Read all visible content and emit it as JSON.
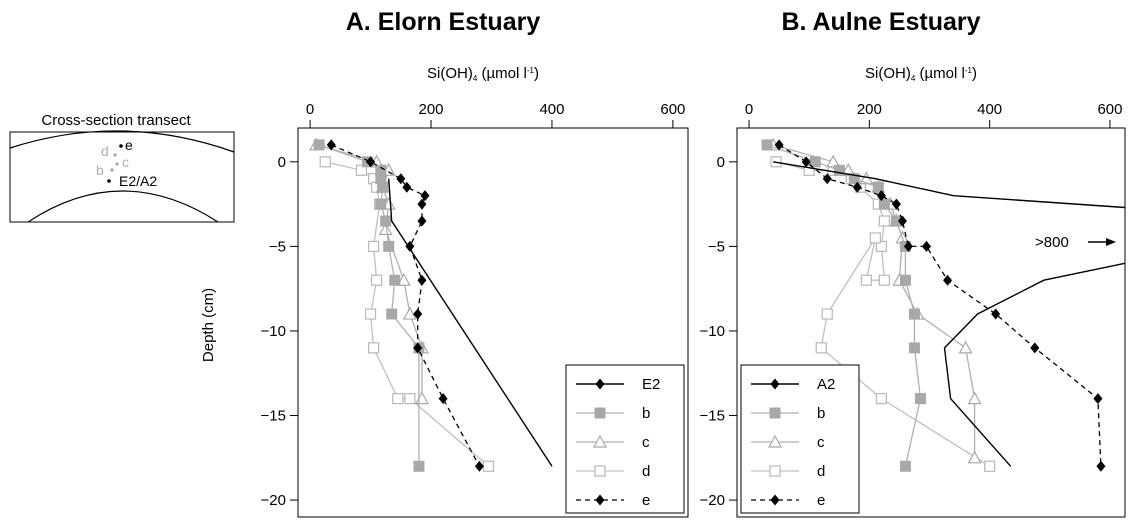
{
  "inset": {
    "title": "Cross-section transect",
    "labels": {
      "d": "d",
      "e": "e",
      "c": "c",
      "b": "b",
      "station": "E2/A2"
    },
    "colors": {
      "d": "#b0b0b0",
      "c": "#b0b0b0",
      "b": "#b0b0b0",
      "e": "#000000",
      "station": "#000000"
    }
  },
  "y_axis_label": "Depth (cm)",
  "chart_data": [
    {
      "id": "elorn",
      "type": "line",
      "title": "A. Elorn Estuary",
      "xlabel_main": "Si(OH)",
      "xlabel_sub": "4",
      "xlabel_unit": "(µmol l",
      "xlabel_sup": "-1",
      "xlabel_close": ")",
      "xlim": [
        -20,
        625
      ],
      "ylim": [
        -21,
        2
      ],
      "xticks": [
        0,
        200,
        400,
        600
      ],
      "yticks": [
        0,
        -5,
        -10,
        -15,
        -20
      ],
      "legend_position": "bottom-right",
      "series": [
        {
          "name": "E2",
          "style": "line",
          "color": "#000000",
          "x": [
            130,
            135,
            400
          ],
          "y": [
            -1,
            -3.5,
            -18
          ]
        },
        {
          "name": "b",
          "style": "gray-filled-square",
          "color": "#a0a0a0",
          "x": [
            15,
            95,
            117,
            117,
            120,
            117,
            125,
            130,
            140,
            135,
            180,
            180
          ],
          "y": [
            1,
            0,
            -0.5,
            -1,
            -1.5,
            -2.5,
            -3.5,
            -5,
            -7,
            -9,
            -11,
            -18
          ]
        },
        {
          "name": "c",
          "style": "gray-open-triangle",
          "color": "#a0a0a0",
          "x": [
            10,
            110,
            130,
            120,
            130,
            125,
            155,
            165,
            185,
            185
          ],
          "y": [
            1,
            0,
            -0.5,
            -1.5,
            -2.5,
            -4,
            -7,
            -9,
            -11,
            -14
          ]
        },
        {
          "name": "d",
          "style": "gray-open-square",
          "color": "#b0b0b0",
          "x": [
            25,
            85,
            105,
            110,
            115,
            105,
            110,
            100,
            105,
            145,
            165,
            295
          ],
          "y": [
            0,
            -0.5,
            -1,
            -1.5,
            -2.5,
            -5,
            -7,
            -9,
            -11,
            -14,
            -14,
            -18
          ]
        },
        {
          "name": "e",
          "style": "dashed-black-diamond",
          "color": "#000000",
          "x": [
            35,
            100,
            150,
            160,
            190,
            185,
            185,
            165,
            185,
            178,
            178,
            220,
            280
          ],
          "y": [
            1,
            0,
            -1,
            -1.5,
            -2,
            -2.5,
            -3.5,
            -5,
            -7,
            -9,
            -11,
            -14,
            -18
          ]
        }
      ]
    },
    {
      "id": "aulne",
      "type": "line",
      "title": "B. Aulne Estuary",
      "xlabel_main": "Si(OH)",
      "xlabel_sub": "4",
      "xlabel_unit": "(µmol l",
      "xlabel_sup": "-1",
      "xlabel_close": ")",
      "xlim": [
        -20,
        625
      ],
      "ylim": [
        -21,
        2
      ],
      "xticks": [
        0,
        200,
        400,
        600
      ],
      "yticks": [
        0,
        -5,
        -10,
        -15,
        -20
      ],
      "annotation": ">800",
      "legend_position": "bottom-left",
      "series": [
        {
          "name": "A2",
          "style": "line",
          "color": "#000000",
          "x": [
            40,
            210,
            340,
            625,
            null,
            625,
            490,
            380,
            325,
            335,
            435
          ],
          "y": [
            0,
            -1,
            -2,
            -2.7,
            null,
            -6,
            -7,
            -9,
            -11,
            -14,
            -18
          ]
        },
        {
          "name": "b",
          "style": "gray-filled-square",
          "color": "#a0a0a0",
          "x": [
            30,
            110,
            150,
            175,
            215,
            225,
            245,
            260,
            260,
            275,
            275,
            285,
            260
          ],
          "y": [
            1,
            0,
            -0.5,
            -1,
            -1.5,
            -2.5,
            -3.5,
            -5,
            -7,
            -9,
            -11,
            -14,
            -18
          ]
        },
        {
          "name": "c",
          "style": "gray-open-triangle",
          "color": "#a0a0a0",
          "x": [
            40,
            140,
            165,
            195,
            215,
            235,
            245,
            255,
            250,
            280,
            360,
            375,
            375
          ],
          "y": [
            1,
            0,
            -0.5,
            -1,
            -1.5,
            -2.5,
            -3.5,
            -4.5,
            -7,
            -9,
            -11,
            -14,
            -17.5
          ]
        },
        {
          "name": "d",
          "style": "gray-open-square",
          "color": "#b0b0b0",
          "x": [
            45,
            100,
            140,
            170,
            185,
            215,
            225,
            220,
            225,
            195,
            210,
            130,
            120,
            220,
            400
          ],
          "y": [
            0,
            -0.5,
            -0.5,
            -1,
            -1.5,
            -2.5,
            -3.5,
            -5,
            -7,
            -7,
            -4.5,
            -9,
            -11,
            -14,
            -18
          ]
        },
        {
          "name": "e",
          "style": "dashed-black-diamond",
          "color": "#000000",
          "x": [
            50,
            95,
            130,
            180,
            220,
            245,
            255,
            265,
            295,
            330,
            410,
            475,
            580,
            585
          ],
          "y": [
            1,
            0,
            -1,
            -1.5,
            -2,
            -2.5,
            -3.5,
            -5,
            -5,
            -7,
            -9,
            -11,
            -14,
            -18
          ]
        }
      ]
    }
  ]
}
